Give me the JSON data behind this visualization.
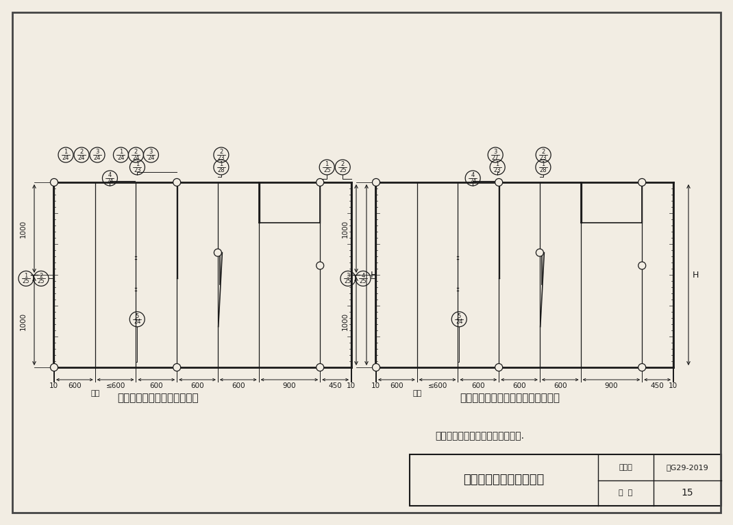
{
  "bg_color": "#f2ede3",
  "line_color": "#1a1a1a",
  "title_box_text": "内墙板整条板安装立面图",
  "title_box_atlas": "图集号",
  "title_box_atlas_val": "苏G29-2019",
  "title_box_page": "页  次",
  "title_box_page_val": "15",
  "note_text": "注：按各厚度墙板的限制高度执行.",
  "left_diagram_title": "内墙板整条板安装立面大样图",
  "right_diagram_title": "钢结构内墙板整条板安装立面大样图",
  "dim_labels": [
    "10",
    "600",
    "≤600",
    "600",
    "600",
    "600",
    "900",
    "450",
    "10"
  ],
  "buban_label": "补板",
  "H_label": "H",
  "dim_1000": "1000"
}
